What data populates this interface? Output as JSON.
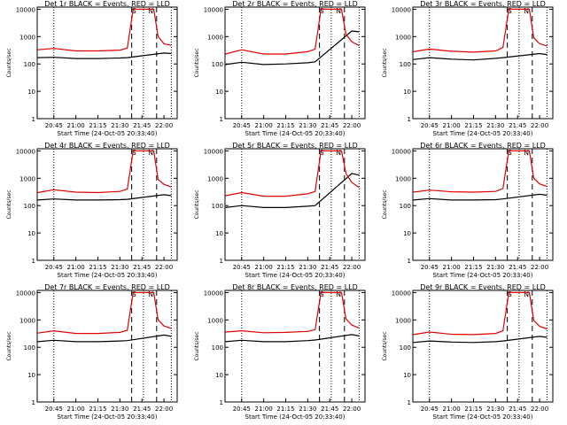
{
  "colors": {
    "events": "#000000",
    "lld": "#e00000",
    "axis": "#000000"
  },
  "xticks": [
    "20:45",
    "21:00",
    "21:15",
    "21:30",
    "21:45",
    "22:00"
  ],
  "yticks": [
    "1",
    "10",
    "100",
    "1000",
    "10000"
  ],
  "ylabel": "Counts/sec",
  "xlabel": "Start Time (24-Oct-05 20:33:40)",
  "markers": {
    "saa": "S",
    "night": "N"
  },
  "chart_data": [
    {
      "type": "line",
      "title": "Det 1r BLACK = Events, RED = LLD",
      "xlabel": "Start Time (24-Oct-05 20:33:40)",
      "ylabel": "Counts/sec",
      "yscale": "log",
      "ylim": [
        1,
        12000
      ],
      "xlim": [
        "20:33:40",
        "22:09:00"
      ],
      "series": [
        {
          "name": "Events",
          "color": "#000000",
          "values": [
            {
              "x": "20:34",
              "y": 170
            },
            {
              "x": "20:45",
              "y": 175
            },
            {
              "x": "21:00",
              "y": 158
            },
            {
              "x": "21:15",
              "y": 158
            },
            {
              "x": "21:30",
              "y": 165
            },
            {
              "x": "21:35",
              "y": 170
            },
            {
              "x": "22:00",
              "y": 250
            },
            {
              "x": "22:05",
              "y": 240
            }
          ]
        },
        {
          "name": "LLD",
          "color": "#e00000",
          "values": [
            {
              "x": "20:34",
              "y": 330
            },
            {
              "x": "20:45",
              "y": 370
            },
            {
              "x": "21:00",
              "y": 300
            },
            {
              "x": "21:15",
              "y": 300
            },
            {
              "x": "21:30",
              "y": 320
            },
            {
              "x": "21:35",
              "y": 380
            },
            {
              "x": "21:39",
              "y": 10000
            },
            {
              "x": "21:53",
              "y": 10000
            },
            {
              "x": "21:56",
              "y": 1000
            },
            {
              "x": "22:00",
              "y": 550
            },
            {
              "x": "22:05",
              "y": 480
            }
          ]
        }
      ]
    },
    {
      "type": "line",
      "title": "Det 2r BLACK = Events, RED = LLD",
      "xlabel": "Start Time (24-Oct-05 20:33:40)",
      "ylabel": "Counts/sec",
      "yscale": "log",
      "ylim": [
        1,
        12000
      ],
      "xlim": [
        "20:33:40",
        "22:09:00"
      ],
      "series": [
        {
          "name": "Events",
          "color": "#000000",
          "values": [
            {
              "x": "20:34",
              "y": 95
            },
            {
              "x": "20:45",
              "y": 115
            },
            {
              "x": "21:00",
              "y": 95
            },
            {
              "x": "21:15",
              "y": 100
            },
            {
              "x": "21:30",
              "y": 110
            },
            {
              "x": "21:35",
              "y": 120
            },
            {
              "x": "22:00",
              "y": 1600
            },
            {
              "x": "22:05",
              "y": 1500
            }
          ]
        },
        {
          "name": "LLD",
          "color": "#e00000",
          "values": [
            {
              "x": "20:34",
              "y": 230
            },
            {
              "x": "20:45",
              "y": 330
            },
            {
              "x": "21:00",
              "y": 230
            },
            {
              "x": "21:15",
              "y": 230
            },
            {
              "x": "21:30",
              "y": 280
            },
            {
              "x": "21:35",
              "y": 350
            },
            {
              "x": "21:39",
              "y": 10000
            },
            {
              "x": "21:53",
              "y": 10000
            },
            {
              "x": "21:56",
              "y": 1200
            },
            {
              "x": "22:00",
              "y": 650
            },
            {
              "x": "22:05",
              "y": 470
            }
          ]
        }
      ]
    },
    {
      "type": "line",
      "title": "Det 3r BLACK = Events, RED = LLD",
      "xlabel": "Start Time (24-Oct-05 20:33:40)",
      "ylabel": "Counts/sec",
      "yscale": "log",
      "ylim": [
        1,
        12000
      ],
      "xlim": [
        "20:33:40",
        "22:09:00"
      ],
      "series": [
        {
          "name": "Events",
          "color": "#000000",
          "values": [
            {
              "x": "20:34",
              "y": 145
            },
            {
              "x": "20:45",
              "y": 170
            },
            {
              "x": "21:00",
              "y": 150
            },
            {
              "x": "21:15",
              "y": 140
            },
            {
              "x": "21:30",
              "y": 160
            },
            {
              "x": "21:35",
              "y": 170
            },
            {
              "x": "22:00",
              "y": 240
            },
            {
              "x": "22:05",
              "y": 220
            }
          ]
        },
        {
          "name": "LLD",
          "color": "#e00000",
          "values": [
            {
              "x": "20:34",
              "y": 280
            },
            {
              "x": "20:45",
              "y": 350
            },
            {
              "x": "21:00",
              "y": 290
            },
            {
              "x": "21:15",
              "y": 270
            },
            {
              "x": "21:30",
              "y": 300
            },
            {
              "x": "21:35",
              "y": 400
            },
            {
              "x": "21:39",
              "y": 10000
            },
            {
              "x": "21:53",
              "y": 10000
            },
            {
              "x": "21:56",
              "y": 900
            },
            {
              "x": "22:00",
              "y": 550
            },
            {
              "x": "22:05",
              "y": 460
            }
          ]
        }
      ]
    },
    {
      "type": "line",
      "title": "Det 4r BLACK = Events, RED = LLD",
      "xlabel": "Start Time (24-Oct-05 20:33:40)",
      "ylabel": "Counts/sec",
      "yscale": "log",
      "ylim": [
        1,
        12000
      ],
      "xlim": [
        "20:33:40",
        "22:09:00"
      ],
      "series": [
        {
          "name": "Events",
          "color": "#000000",
          "values": [
            {
              "x": "20:34",
              "y": 160
            },
            {
              "x": "20:45",
              "y": 175
            },
            {
              "x": "21:00",
              "y": 160
            },
            {
              "x": "21:15",
              "y": 160
            },
            {
              "x": "21:30",
              "y": 165
            },
            {
              "x": "21:35",
              "y": 170
            },
            {
              "x": "22:00",
              "y": 250
            },
            {
              "x": "22:05",
              "y": 230
            }
          ]
        },
        {
          "name": "LLD",
          "color": "#e00000",
          "values": [
            {
              "x": "20:34",
              "y": 300
            },
            {
              "x": "20:45",
              "y": 380
            },
            {
              "x": "21:00",
              "y": 310
            },
            {
              "x": "21:15",
              "y": 300
            },
            {
              "x": "21:30",
              "y": 330
            },
            {
              "x": "21:35",
              "y": 400
            },
            {
              "x": "21:39",
              "y": 10000
            },
            {
              "x": "21:53",
              "y": 10000
            },
            {
              "x": "21:56",
              "y": 900
            },
            {
              "x": "22:00",
              "y": 600
            },
            {
              "x": "22:05",
              "y": 480
            }
          ]
        }
      ]
    },
    {
      "type": "line",
      "title": "Det 5r BLACK = Events, RED = LLD",
      "xlabel": "Start Time (24-Oct-05 20:33:40)",
      "ylabel": "Counts/sec",
      "yscale": "log",
      "ylim": [
        1,
        12000
      ],
      "xlim": [
        "20:33:40",
        "22:09:00"
      ],
      "series": [
        {
          "name": "Events",
          "color": "#000000",
          "values": [
            {
              "x": "20:34",
              "y": 85
            },
            {
              "x": "20:45",
              "y": 100
            },
            {
              "x": "21:00",
              "y": 85
            },
            {
              "x": "21:15",
              "y": 85
            },
            {
              "x": "21:30",
              "y": 95
            },
            {
              "x": "21:35",
              "y": 100
            },
            {
              "x": "22:00",
              "y": 1500
            },
            {
              "x": "22:05",
              "y": 1300
            }
          ]
        },
        {
          "name": "LLD",
          "color": "#e00000",
          "values": [
            {
              "x": "20:34",
              "y": 230
            },
            {
              "x": "20:45",
              "y": 300
            },
            {
              "x": "21:00",
              "y": 220
            },
            {
              "x": "21:15",
              "y": 220
            },
            {
              "x": "21:30",
              "y": 270
            },
            {
              "x": "21:35",
              "y": 330
            },
            {
              "x": "21:39",
              "y": 10000
            },
            {
              "x": "21:53",
              "y": 10000
            },
            {
              "x": "21:56",
              "y": 1500
            },
            {
              "x": "22:00",
              "y": 700
            },
            {
              "x": "22:05",
              "y": 460
            }
          ]
        }
      ]
    },
    {
      "type": "line",
      "title": "Det 6r BLACK = Events, RED = LLD",
      "xlabel": "Start Time (24-Oct-05 20:33:40)",
      "ylabel": "Counts/sec",
      "yscale": "log",
      "ylim": [
        1,
        12000
      ],
      "xlim": [
        "20:33:40",
        "22:09:00"
      ],
      "series": [
        {
          "name": "Events",
          "color": "#000000",
          "values": [
            {
              "x": "20:34",
              "y": 160
            },
            {
              "x": "20:45",
              "y": 180
            },
            {
              "x": "21:00",
              "y": 160
            },
            {
              "x": "21:15",
              "y": 160
            },
            {
              "x": "21:30",
              "y": 165
            },
            {
              "x": "21:35",
              "y": 175
            },
            {
              "x": "22:00",
              "y": 260
            },
            {
              "x": "22:05",
              "y": 240
            }
          ]
        },
        {
          "name": "LLD",
          "color": "#e00000",
          "values": [
            {
              "x": "20:34",
              "y": 310
            },
            {
              "x": "20:45",
              "y": 370
            },
            {
              "x": "21:00",
              "y": 320
            },
            {
              "x": "21:15",
              "y": 310
            },
            {
              "x": "21:30",
              "y": 330
            },
            {
              "x": "21:35",
              "y": 420
            },
            {
              "x": "21:39",
              "y": 10000
            },
            {
              "x": "21:53",
              "y": 10000
            },
            {
              "x": "21:56",
              "y": 1000
            },
            {
              "x": "22:00",
              "y": 620
            },
            {
              "x": "22:05",
              "y": 500
            }
          ]
        }
      ]
    },
    {
      "type": "line",
      "title": "Det 7r BLACK = Events, RED = LLD",
      "xlabel": "Start Time (24-Oct-05 20:33:40)",
      "ylabel": "Counts/sec",
      "yscale": "log",
      "ylim": [
        1,
        12000
      ],
      "xlim": [
        "20:33:40",
        "22:09:00"
      ],
      "series": [
        {
          "name": "Events",
          "color": "#000000",
          "values": [
            {
              "x": "20:34",
              "y": 160
            },
            {
              "x": "20:45",
              "y": 180
            },
            {
              "x": "21:00",
              "y": 160
            },
            {
              "x": "21:15",
              "y": 160
            },
            {
              "x": "21:30",
              "y": 170
            },
            {
              "x": "21:35",
              "y": 175
            },
            {
              "x": "22:00",
              "y": 280
            },
            {
              "x": "22:05",
              "y": 250
            }
          ]
        },
        {
          "name": "LLD",
          "color": "#e00000",
          "values": [
            {
              "x": "20:34",
              "y": 330
            },
            {
              "x": "20:45",
              "y": 400
            },
            {
              "x": "21:00",
              "y": 320
            },
            {
              "x": "21:15",
              "y": 320
            },
            {
              "x": "21:30",
              "y": 350
            },
            {
              "x": "21:35",
              "y": 420
            },
            {
              "x": "21:39",
              "y": 10000
            },
            {
              "x": "21:53",
              "y": 10000
            },
            {
              "x": "21:56",
              "y": 1000
            },
            {
              "x": "22:00",
              "y": 600
            },
            {
              "x": "22:05",
              "y": 490
            }
          ]
        }
      ]
    },
    {
      "type": "line",
      "title": "Det 8r BLACK = Events, RED = LLD",
      "xlabel": "Start Time (24-Oct-05 20:33:40)",
      "ylabel": "Counts/sec",
      "yscale": "log",
      "ylim": [
        1,
        12000
      ],
      "xlim": [
        "20:33:40",
        "22:09:00"
      ],
      "series": [
        {
          "name": "Events",
          "color": "#000000",
          "values": [
            {
              "x": "20:34",
              "y": 160
            },
            {
              "x": "20:45",
              "y": 180
            },
            {
              "x": "21:00",
              "y": 160
            },
            {
              "x": "21:15",
              "y": 160
            },
            {
              "x": "21:30",
              "y": 175
            },
            {
              "x": "21:35",
              "y": 185
            },
            {
              "x": "22:00",
              "y": 290
            },
            {
              "x": "22:05",
              "y": 260
            }
          ]
        },
        {
          "name": "LLD",
          "color": "#e00000",
          "values": [
            {
              "x": "20:34",
              "y": 360
            },
            {
              "x": "20:45",
              "y": 400
            },
            {
              "x": "21:00",
              "y": 340
            },
            {
              "x": "21:15",
              "y": 350
            },
            {
              "x": "21:30",
              "y": 380
            },
            {
              "x": "21:35",
              "y": 440
            },
            {
              "x": "21:39",
              "y": 10000
            },
            {
              "x": "21:53",
              "y": 10000
            },
            {
              "x": "21:56",
              "y": 1100
            },
            {
              "x": "22:00",
              "y": 650
            },
            {
              "x": "22:05",
              "y": 500
            }
          ]
        }
      ]
    },
    {
      "type": "line",
      "title": "Det 9r BLACK = Events, RED = LLD",
      "xlabel": "Start Time (24-Oct-05 20:33:40)",
      "ylabel": "Counts/sec",
      "yscale": "log",
      "ylim": [
        1,
        12000
      ],
      "xlim": [
        "20:33:40",
        "22:09:00"
      ],
      "series": [
        {
          "name": "Events",
          "color": "#000000",
          "values": [
            {
              "x": "20:34",
              "y": 150
            },
            {
              "x": "20:45",
              "y": 170
            },
            {
              "x": "21:00",
              "y": 155
            },
            {
              "x": "21:15",
              "y": 150
            },
            {
              "x": "21:30",
              "y": 160
            },
            {
              "x": "21:35",
              "y": 170
            },
            {
              "x": "22:00",
              "y": 250
            },
            {
              "x": "22:05",
              "y": 230
            }
          ]
        },
        {
          "name": "LLD",
          "color": "#e00000",
          "values": [
            {
              "x": "20:34",
              "y": 290
            },
            {
              "x": "20:45",
              "y": 360
            },
            {
              "x": "21:00",
              "y": 300
            },
            {
              "x": "21:15",
              "y": 290
            },
            {
              "x": "21:30",
              "y": 320
            },
            {
              "x": "21:35",
              "y": 400
            },
            {
              "x": "21:39",
              "y": 10000
            },
            {
              "x": "21:53",
              "y": 10000
            },
            {
              "x": "21:56",
              "y": 950
            },
            {
              "x": "22:00",
              "y": 580
            },
            {
              "x": "22:05",
              "y": 470
            }
          ]
        }
      ]
    }
  ]
}
